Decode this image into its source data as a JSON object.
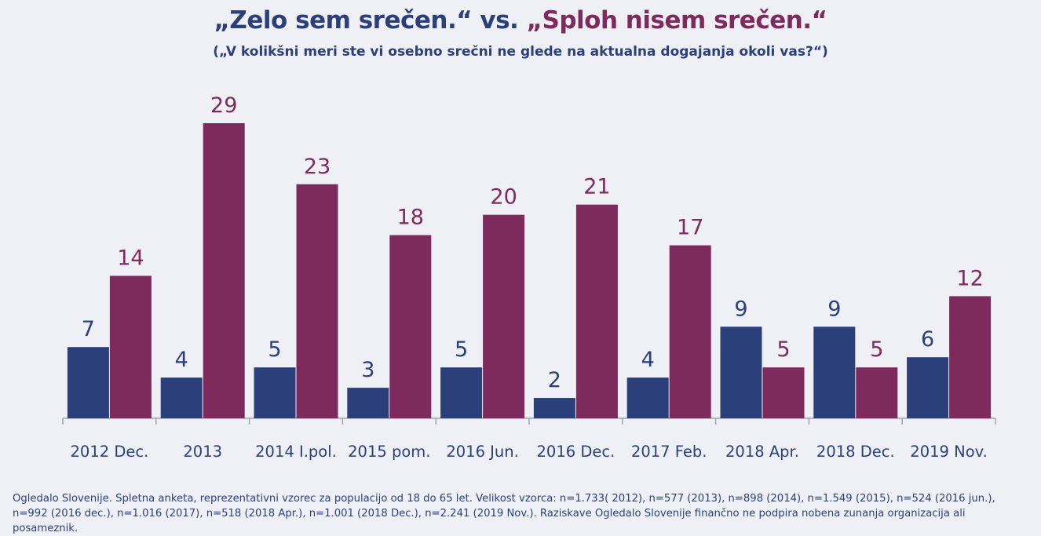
{
  "title": {
    "part1": "„Zelo sem srečen.“ vs. ",
    "part2": "„Sploh nisem srečen.“"
  },
  "subtitle": "(„V kolikšni meri ste vi osebno srečni ne glede na aktualna dogajanja okoli vas?“)",
  "footnote": "Ogledalo Slovenije. Spletna anketa, reprezentativni vzorec za populacijo od 18 do 65 let. Velikost vzorca: n=1.733( 2012), n=577 (2013), n=898 (2014), n=1.549 (2015), n=524 (2016 jun.), n=992 (2016 dec.), n=1.016 (2017), n=518 (2018 Apr.), n=1.001 (2018 Dec.), n=2.241 (2019 Nov.). Raziskave Ogledalo Slovenije finančno ne podpira nobena zunanja organizacija ali posameznik.",
  "colors": {
    "series1": "#2b3f7a",
    "series2": "#7d2a5c",
    "background": "#eef0f5",
    "axis": "#a0a4b0"
  },
  "chart_data": {
    "type": "bar",
    "categories": [
      "2012 Dec.",
      "2013",
      "2014 I.pol.",
      "2015 pom.",
      "2016 Jun.",
      "2016 Dec.",
      "2017 Feb.",
      "2018 Apr.",
      "2018 Dec.",
      "2019 Nov."
    ],
    "series": [
      {
        "values": [
          7,
          4,
          5,
          3,
          5,
          2,
          4,
          9,
          9,
          6
        ]
      },
      {
        "values": [
          14,
          29,
          23,
          18,
          20,
          21,
          17,
          5,
          5,
          12
        ]
      }
    ],
    "ylim": [
      0,
      29
    ],
    "data_labels": true,
    "grid": false,
    "legend": "none"
  }
}
